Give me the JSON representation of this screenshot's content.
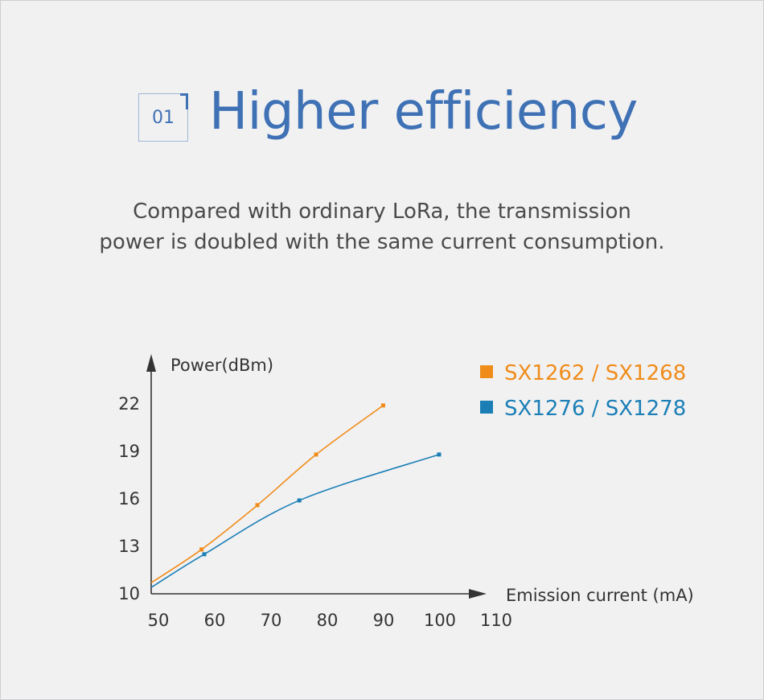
{
  "badge": "01",
  "title": "Higher efficiency",
  "subtitle_lines": [
    "Compared with ordinary LoRa, the transmission",
    "power is doubled with the same current consumption."
  ],
  "colors": {
    "accent": "#3f71b5",
    "series_orange": "#f08c1a",
    "series_blue": "#1b7fb6"
  },
  "chart_data": {
    "type": "line",
    "ylabel": "Power(dBm)",
    "xlabel": "Emission current (mA)",
    "x_ticks": [
      50,
      60,
      70,
      80,
      90,
      100,
      110
    ],
    "y_ticks": [
      10,
      13,
      16,
      19,
      22
    ],
    "xlim": [
      49,
      110
    ],
    "ylim": [
      10,
      24
    ],
    "legend_position": "top-right",
    "grid": false,
    "series": [
      {
        "name": "SX1262 / SX1268",
        "color": "#f08c1a",
        "line_start": [
          49,
          10.7
        ],
        "points": [
          [
            58,
            12.8
          ],
          [
            68,
            15.6
          ],
          [
            78.5,
            18.8
          ],
          [
            90.5,
            21.9
          ]
        ]
      },
      {
        "name": "SX1276 / SX1278",
        "color": "#1b7fb6",
        "line_start": [
          49,
          10.4
        ],
        "points": [
          [
            58.5,
            12.5
          ],
          [
            75.5,
            15.9
          ],
          [
            100.5,
            18.8
          ]
        ]
      }
    ]
  }
}
